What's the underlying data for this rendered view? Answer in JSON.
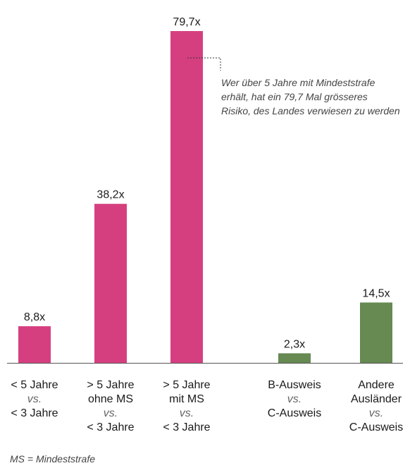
{
  "chart_data": {
    "type": "bar",
    "title": "",
    "xlabel": "",
    "ylabel": "",
    "ylim": [
      0,
      79.7
    ],
    "grid": false,
    "categories": [
      {
        "lines": [
          "< 5 Jahre",
          "vs.",
          "< 3 Jahre"
        ],
        "vs_index": 1
      },
      {
        "lines": [
          "> 5 Jahre",
          "ohne MS",
          "vs.",
          "< 3 Jahre"
        ],
        "vs_index": 2
      },
      {
        "lines": [
          "> 5 Jahre",
          "mit MS",
          "vs.",
          "< 3 Jahre"
        ],
        "vs_index": 2
      },
      {
        "lines": [
          "B-Ausweis",
          "vs.",
          "C-Ausweis"
        ],
        "vs_index": 1
      },
      {
        "lines": [
          "Andere",
          "Ausländer",
          "vs.",
          "C-Ausweis"
        ],
        "vs_index": 2
      }
    ],
    "values": [
      8.8,
      38.2,
      79.7,
      2.3,
      14.5
    ],
    "value_labels": [
      "8,8x",
      "38,2x",
      "79,7x",
      "2,3x",
      "14,5x"
    ],
    "bar_colors": [
      "#d63f7f",
      "#d63f7f",
      "#d63f7f",
      "#668a52",
      "#668a52"
    ],
    "annotation": {
      "lines": [
        "Wer über 5 Jahre mit Mindeststrafe",
        "erhält, hat ein 79,7 Mal grösseres",
        "Risiko, des Landes verwiesen zu werden"
      ]
    }
  },
  "footnote": "MS = Mindeststrafe"
}
